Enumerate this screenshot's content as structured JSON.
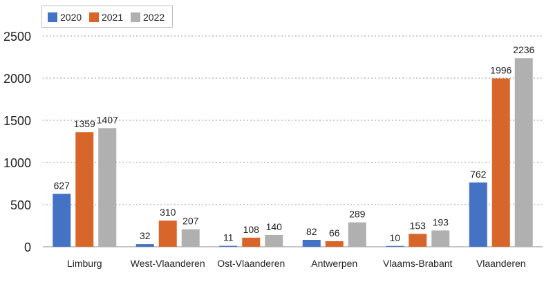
{
  "chart_data": {
    "type": "bar",
    "categories": [
      "Limburg",
      "West-Vlaanderen",
      "Ost-Vlaanderen",
      "Antwerpen",
      "Vlaams-Brabant",
      "Vlaanderen"
    ],
    "series": [
      {
        "name": "2020",
        "color": "#4472c4",
        "values": [
          627,
          32,
          11,
          82,
          10,
          762
        ]
      },
      {
        "name": "2021",
        "color": "#d8662b",
        "values": [
          1359,
          310,
          108,
          66,
          153,
          1996
        ]
      },
      {
        "name": "2022",
        "color": "#b0b0b0",
        "values": [
          1407,
          207,
          140,
          289,
          193,
          2236
        ]
      }
    ],
    "ylim": [
      0,
      2500
    ],
    "yticks": [
      0,
      500,
      1000,
      1500,
      2000,
      2500
    ],
    "grid": true,
    "legend_position": "top-left",
    "title": "",
    "xlabel": "",
    "ylabel": ""
  }
}
